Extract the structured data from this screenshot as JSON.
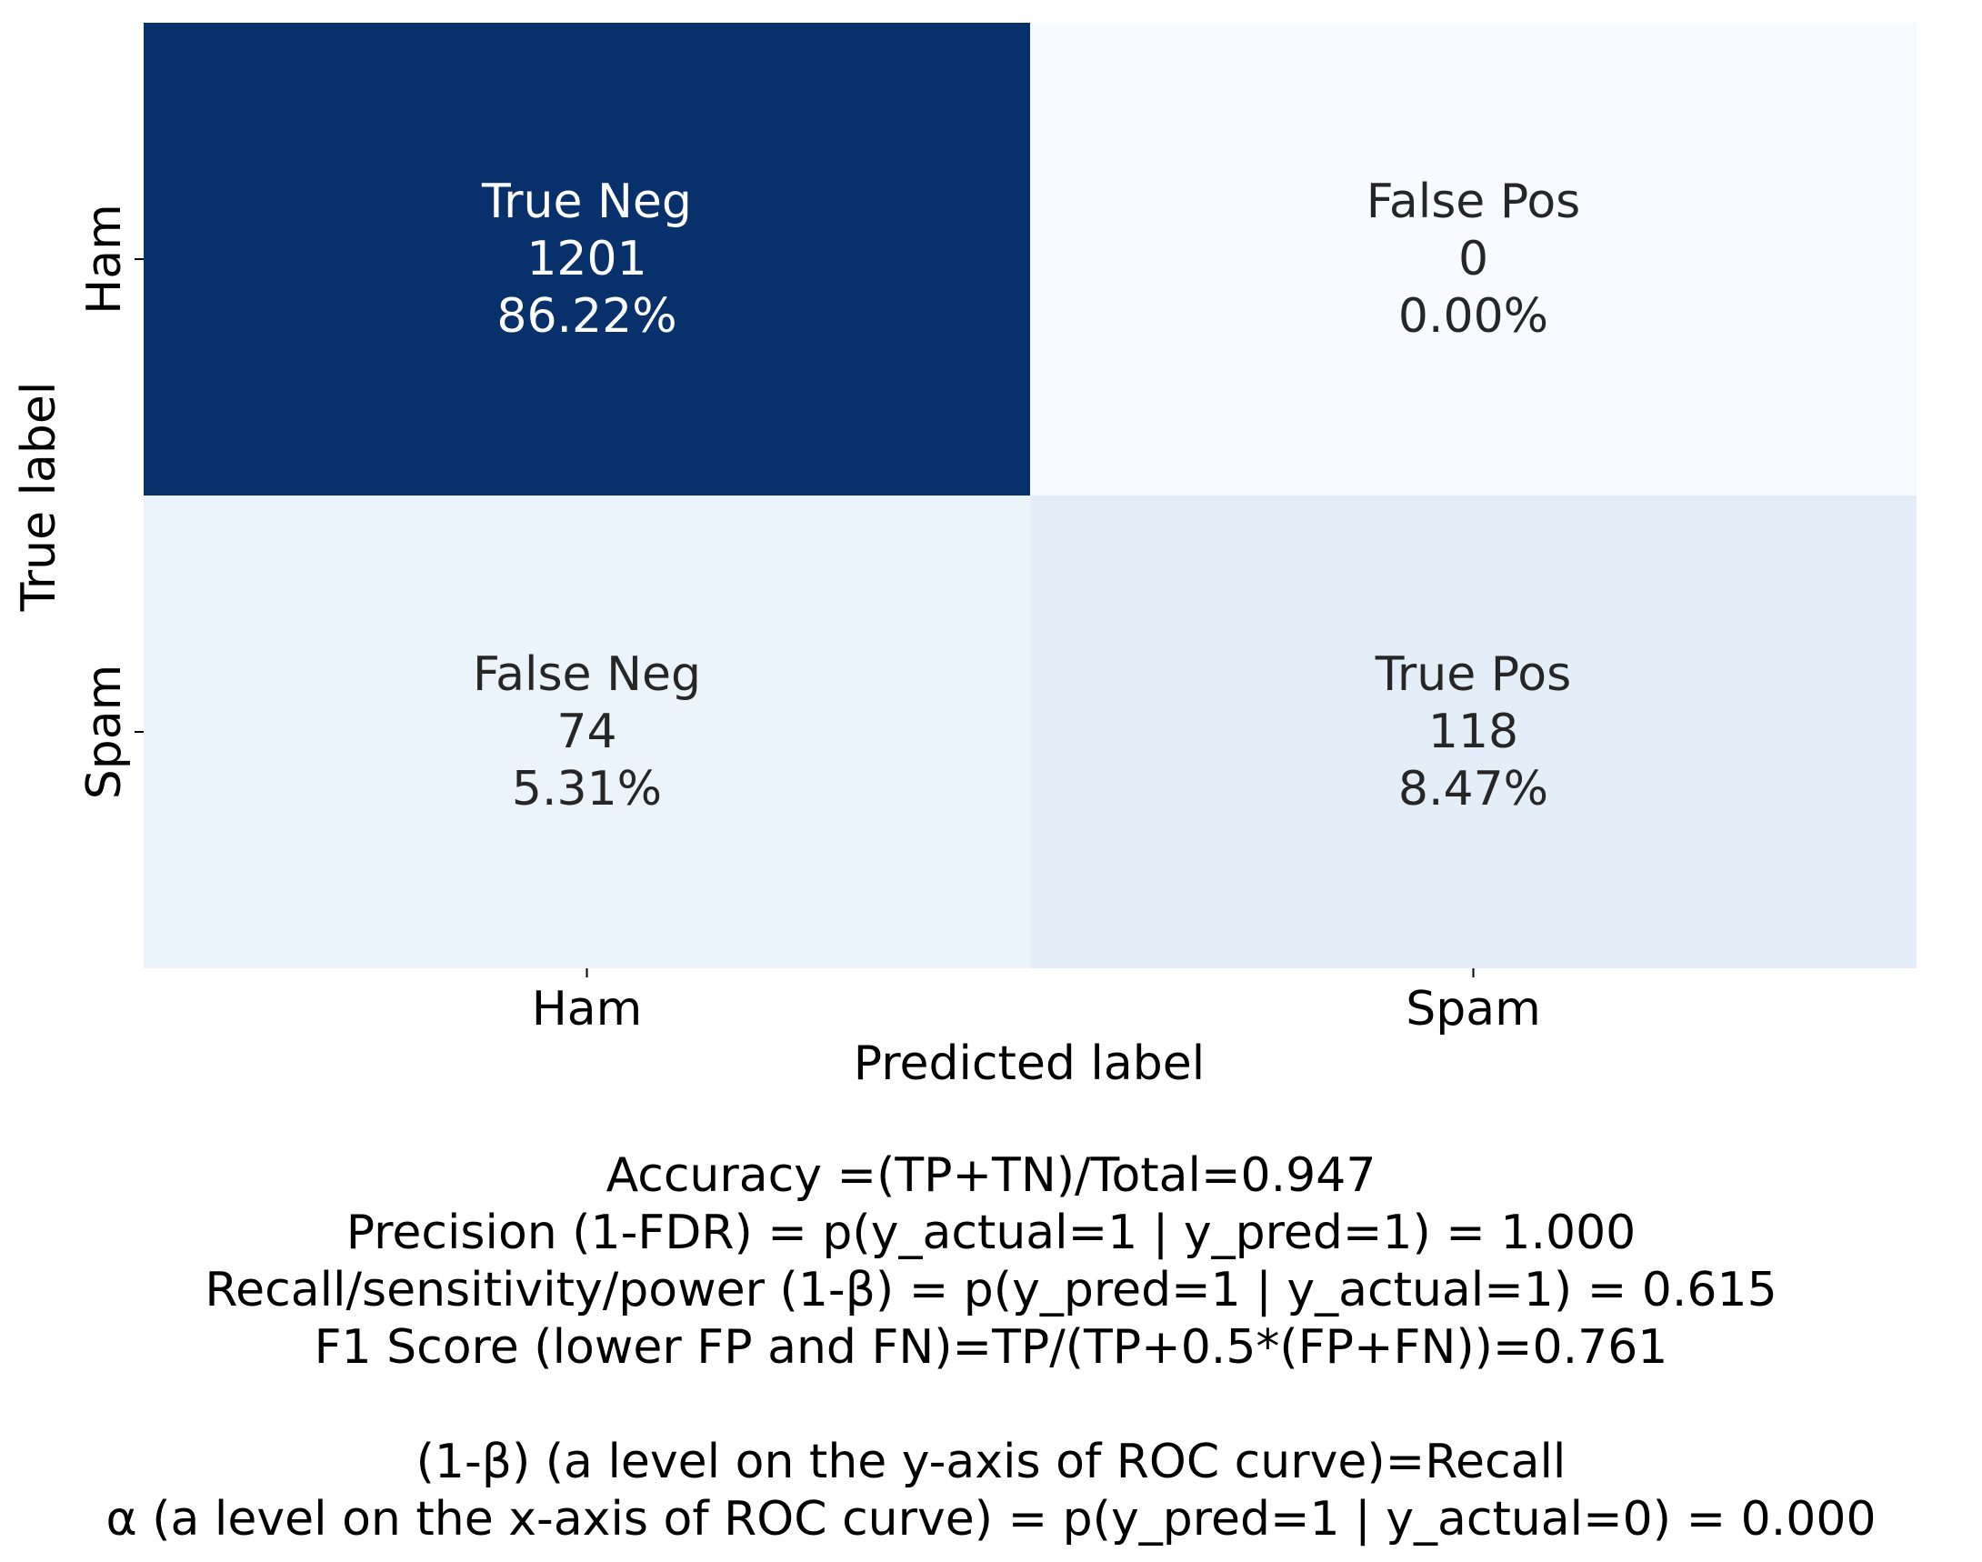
{
  "chart_data": {
    "type": "heatmap",
    "title": "",
    "xlabel": "Predicted label",
    "ylabel": "True label",
    "x_categories": [
      "Ham",
      "Spam"
    ],
    "y_categories": [
      "Ham",
      "Spam"
    ],
    "colormap": "Blues",
    "colorbar": false,
    "cells": [
      {
        "row": 0,
        "col": 0,
        "name": "True Neg",
        "count": 1201,
        "percent": "86.22%",
        "count_label": "1201"
      },
      {
        "row": 0,
        "col": 1,
        "name": "False Pos",
        "count": 0,
        "percent": "0.00%",
        "count_label": "0"
      },
      {
        "row": 1,
        "col": 0,
        "name": "False Neg",
        "count": 74,
        "percent": "5.31%",
        "count_label": "74"
      },
      {
        "row": 1,
        "col": 1,
        "name": "True Pos",
        "count": 118,
        "percent": "8.47%",
        "count_label": "118"
      }
    ],
    "colors": {
      "dark_cell_text": "#ffffff",
      "light_cell_text": "#262626",
      "axis_text": "#000000"
    }
  },
  "metrics": {
    "accuracy": "Accuracy =(TP+TN)/Total=0.947",
    "precision": "Precision (1-FDR) = p(y_actual=1 | y_pred=1) = 1.000",
    "recall": "Recall/sensitivity/power (1-β) = p(y_pred=1 | y_actual=1) = 0.615",
    "f1": "F1 Score (lower FP and FN)=TP/(TP+0.5*(FP+FN))=0.761",
    "roc_y": "(1-β) (a level on the y-axis of ROC curve)=Recall",
    "roc_x": "α (a level on the x-axis of ROC curve) = p(y_pred=1 | y_actual=0) = 0.000"
  }
}
